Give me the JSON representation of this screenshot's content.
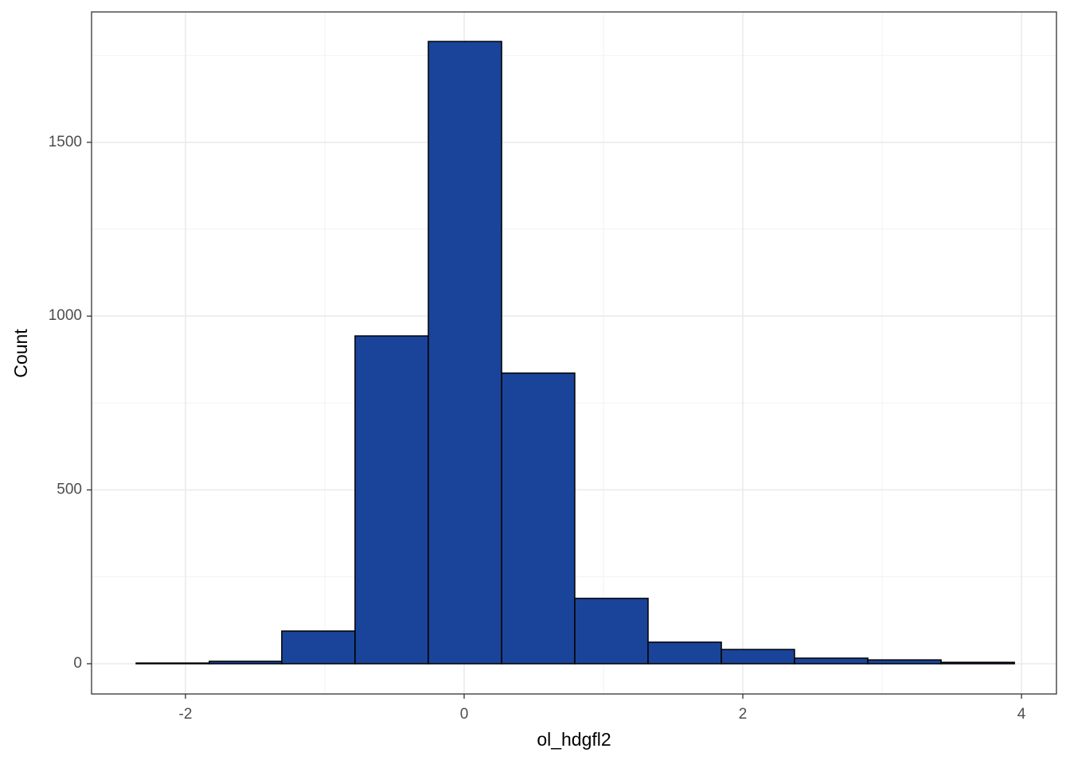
{
  "chart_data": {
    "type": "histogram",
    "x_label": "ol_hdgfl2",
    "y_label": "Count",
    "bins": [
      -2.354,
      -1.829,
      -1.309,
      -0.783,
      -0.257,
      0.269,
      0.794,
      1.32,
      1.846,
      2.371,
      2.897,
      3.423,
      3.949
    ],
    "values": [
      2,
      7,
      94,
      943,
      1790,
      836,
      188,
      62,
      41,
      16,
      11,
      4
    ],
    "color": "#1a4499",
    "edgecolor": "#000000",
    "xlim": [
      -2.674,
      4.251
    ],
    "ylim": [
      -87,
      1875
    ],
    "xticks": [
      -2,
      0,
      2,
      4
    ],
    "yticks": [
      0,
      500,
      1000,
      1500
    ],
    "grid": true
  }
}
